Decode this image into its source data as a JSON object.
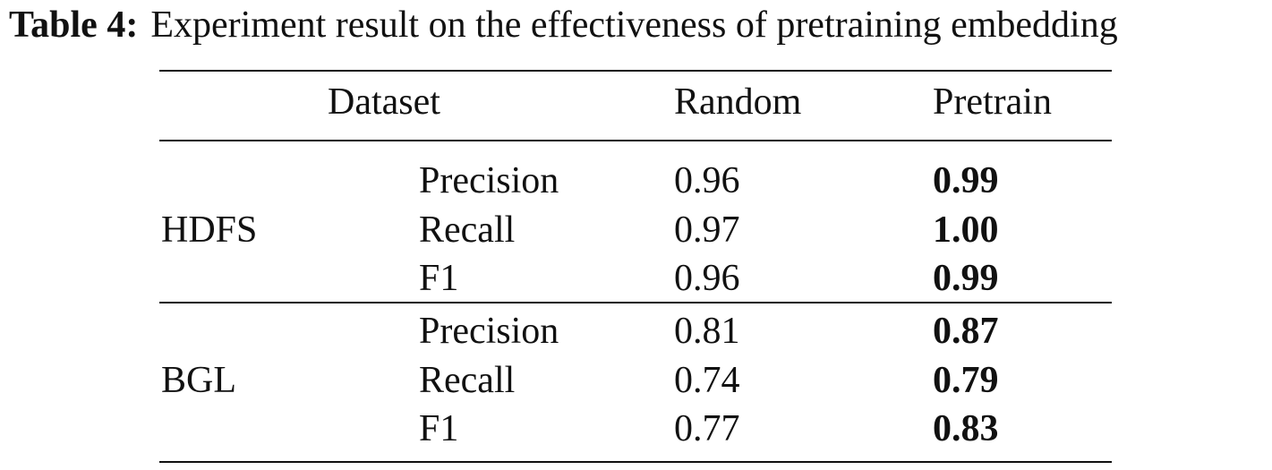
{
  "caption": {
    "label": "Table 4:",
    "text": "Experiment result on the effectiveness of pretraining embedding"
  },
  "table": {
    "headers": {
      "dataset": "Dataset",
      "random": "Random",
      "pretrain": "Pretrain"
    },
    "groups": [
      {
        "name": "HDFS",
        "rows": [
          {
            "metric": "Precision",
            "random": "0.96",
            "pretrain": "0.99"
          },
          {
            "metric": "Recall",
            "random": "0.97",
            "pretrain": "1.00"
          },
          {
            "metric": "F1",
            "random": "0.96",
            "pretrain": "0.99"
          }
        ]
      },
      {
        "name": "BGL",
        "rows": [
          {
            "metric": "Precision",
            "random": "0.81",
            "pretrain": "0.87"
          },
          {
            "metric": "Recall",
            "random": "0.74",
            "pretrain": "0.79"
          },
          {
            "metric": "F1",
            "random": "0.77",
            "pretrain": "0.83"
          }
        ]
      }
    ]
  }
}
